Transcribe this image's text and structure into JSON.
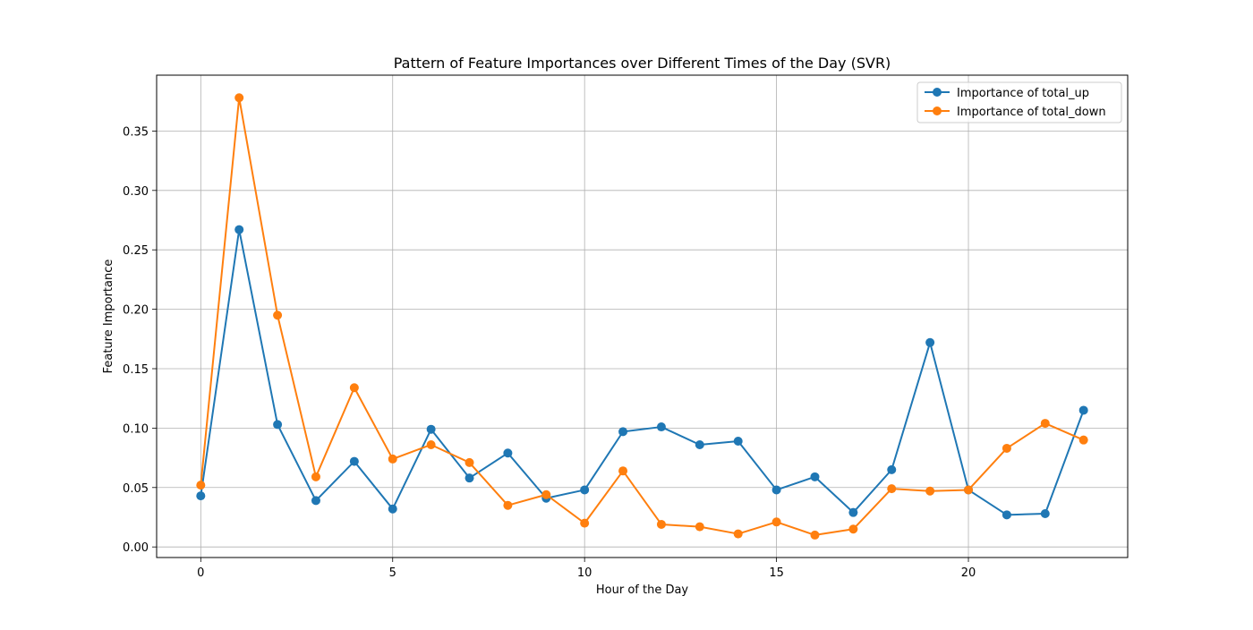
{
  "chart_data": {
    "type": "line",
    "title": "Pattern of Feature Importances over Different Times of the Day (SVR)",
    "xlabel": "Hour of the Day",
    "ylabel": "Feature Importance",
    "xlim": [
      -1.15,
      24.15
    ],
    "ylim": [
      -0.0089,
      0.397
    ],
    "xticks": [
      0,
      5,
      10,
      15,
      20
    ],
    "yticks": [
      0.0,
      0.05,
      0.1,
      0.15,
      0.2,
      0.25,
      0.3,
      0.35
    ],
    "ytick_labels": [
      "0.00",
      "0.05",
      "0.10",
      "0.15",
      "0.20",
      "0.25",
      "0.30",
      "0.35"
    ],
    "grid": true,
    "legend_position": "top-right",
    "x": [
      0,
      1,
      2,
      3,
      4,
      5,
      6,
      7,
      8,
      9,
      10,
      11,
      12,
      13,
      14,
      15,
      16,
      17,
      18,
      19,
      20,
      21,
      22,
      23
    ],
    "series": [
      {
        "name": "Importance of total_up",
        "color": "#1f77b4",
        "marker": "circle",
        "values": [
          0.043,
          0.267,
          0.103,
          0.039,
          0.072,
          0.032,
          0.099,
          0.058,
          0.079,
          0.041,
          0.048,
          0.097,
          0.101,
          0.086,
          0.089,
          0.048,
          0.059,
          0.029,
          0.065,
          0.172,
          0.048,
          0.027,
          0.028,
          0.115
        ]
      },
      {
        "name": "Importance of total_down",
        "color": "#ff7f0e",
        "marker": "circle",
        "values": [
          0.052,
          0.378,
          0.195,
          0.059,
          0.134,
          0.074,
          0.086,
          0.071,
          0.035,
          0.044,
          0.02,
          0.064,
          0.019,
          0.017,
          0.011,
          0.021,
          0.01,
          0.015,
          0.049,
          0.047,
          0.048,
          0.083,
          0.104,
          0.09
        ]
      }
    ]
  }
}
